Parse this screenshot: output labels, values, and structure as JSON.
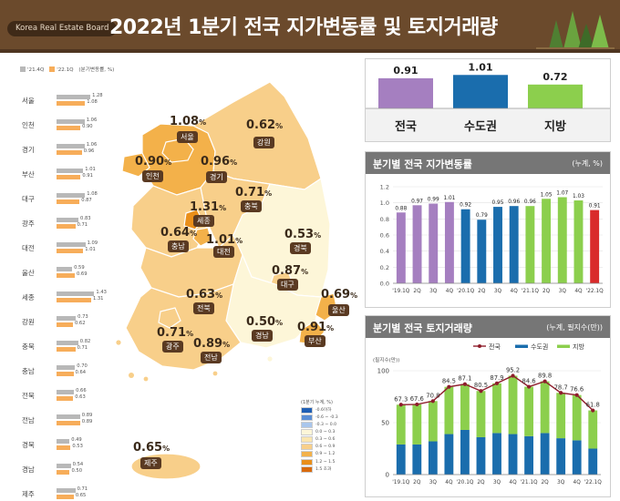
{
  "header": {
    "brand": "Korea Real Estate Board",
    "title": "2022년 1분기 전국 지가변동률 및 토지거래량"
  },
  "legend_top": {
    "prev": "'21.4Q",
    "curr": "'22.1Q",
    "unit": "(분기변동률, %)"
  },
  "regions": [
    {
      "name": "서울",
      "prev": "1.28",
      "curr": "1.08"
    },
    {
      "name": "인천",
      "prev": "1.06",
      "curr": "0.90"
    },
    {
      "name": "경기",
      "prev": "1.06",
      "curr": "0.96"
    },
    {
      "name": "부산",
      "prev": "1.01",
      "curr": "0.91"
    },
    {
      "name": "대구",
      "prev": "1.08",
      "curr": "0.87"
    },
    {
      "name": "광주",
      "prev": "0.83",
      "curr": "0.71"
    },
    {
      "name": "대전",
      "prev": "1.09",
      "curr": "1.01"
    },
    {
      "name": "울산",
      "prev": "0.59",
      "curr": "0.69"
    },
    {
      "name": "세종",
      "prev": "1.43",
      "curr": "1.31"
    },
    {
      "name": "강원",
      "prev": "0.73",
      "curr": "0.62"
    },
    {
      "name": "충북",
      "prev": "0.82",
      "curr": "0.71"
    },
    {
      "name": "충남",
      "prev": "0.70",
      "curr": "0.64"
    },
    {
      "name": "전북",
      "prev": "0.66",
      "curr": "0.63"
    },
    {
      "name": "전남",
      "prev": "0.89",
      "curr": "0.89"
    },
    {
      "name": "경북",
      "prev": "0.49",
      "curr": "0.53"
    },
    {
      "name": "경남",
      "prev": "0.54",
      "curr": "0.50"
    },
    {
      "name": "제주",
      "prev": "0.71",
      "curr": "0.65"
    }
  ],
  "map_labels": [
    {
      "pct": "1.08",
      "unit": "%",
      "name": "서울"
    },
    {
      "pct": "0.62",
      "unit": "%",
      "name": "강원"
    },
    {
      "pct": "0.90",
      "unit": "%",
      "name": "인천"
    },
    {
      "pct": "0.96",
      "unit": "%",
      "name": "경기"
    },
    {
      "pct": "0.71",
      "unit": "%",
      "name": "충북"
    },
    {
      "pct": "1.31",
      "unit": "%",
      "name": "세종"
    },
    {
      "pct": "0.64",
      "unit": "%",
      "name": "충남"
    },
    {
      "pct": "1.01",
      "unit": "%",
      "name": "대전"
    },
    {
      "pct": "0.53",
      "unit": "%",
      "name": "경북"
    },
    {
      "pct": "0.87",
      "unit": "%",
      "name": "대구"
    },
    {
      "pct": "0.63",
      "unit": "%",
      "name": "전북"
    },
    {
      "pct": "0.69",
      "unit": "%",
      "name": "울산"
    },
    {
      "pct": "0.50",
      "unit": "%",
      "name": "경남"
    },
    {
      "pct": "0.91",
      "unit": "%",
      "name": "부산"
    },
    {
      "pct": "0.71",
      "unit": "%",
      "name": "광주"
    },
    {
      "pct": "0.89",
      "unit": "%",
      "name": "전남"
    },
    {
      "pct": "0.65",
      "unit": "%",
      "name": "제주"
    }
  ],
  "scale_legend": {
    "title": "(1분기 누계, %)",
    "items": [
      {
        "label": "-0.6이하",
        "color": "#1f5fb5"
      },
      {
        "label": "-0.6 ~ -0.3",
        "color": "#5b8fd6"
      },
      {
        "label": "-0.3 ~ 0.0",
        "color": "#a9c6ec"
      },
      {
        "label": "0.0 ~ 0.3",
        "color": "#fdf6d8"
      },
      {
        "label": "0.3 ~ 0.6",
        "color": "#fbe6b0"
      },
      {
        "label": "0.6 ~ 0.9",
        "color": "#f8cf8a"
      },
      {
        "label": "0.9 ~ 1.2",
        "color": "#f3b14a"
      },
      {
        "label": "1.2 ~ 1.5",
        "color": "#ea8f1a"
      },
      {
        "label": "1.5 초과",
        "color": "#d86a0d"
      }
    ]
  },
  "colors": {
    "nation": "#a57fc0",
    "capital": "#1a6dad",
    "local": "#8ccf4d",
    "highlight": "#d92b2b",
    "line": "#8e1d2b"
  },
  "chart_data": [
    {
      "type": "bar",
      "title": "",
      "categories": [
        "전국",
        "수도권",
        "지방"
      ],
      "values": [
        0.91,
        1.01,
        0.72
      ],
      "value_labels": [
        "0.91",
        "1.01",
        "0.72"
      ],
      "ylim": [
        0,
        1.1
      ]
    },
    {
      "type": "bar",
      "title": "분기별 전국 지가변동률",
      "unit": "(누계, %)",
      "categories": [
        "'19.1Q",
        "2Q",
        "3Q",
        "4Q",
        "'20.1Q",
        "2Q",
        "3Q",
        "4Q",
        "'21.1Q",
        "2Q",
        "3Q",
        "4Q",
        "'22.1Q"
      ],
      "values": [
        0.88,
        0.97,
        0.99,
        1.01,
        0.92,
        0.79,
        0.95,
        0.96,
        0.96,
        1.05,
        1.07,
        1.03,
        0.91
      ],
      "value_labels": [
        "0.88",
        "0.97",
        "0.99",
        "1.01",
        "0.92",
        "0.79",
        "0.95",
        "0.96",
        "0.96",
        "1.05",
        "1.07",
        "1.03",
        "0.91"
      ],
      "ylim": [
        0,
        1.2
      ],
      "yticks": [
        "0.0",
        "0.2",
        "0.4",
        "0.6",
        "0.8",
        "1.0",
        "1.2"
      ]
    },
    {
      "type": "bar",
      "title": "분기별 전국 토지거래량",
      "unit": "(누계, 필지수(만))",
      "ylabel": "(필지수(만))",
      "categories": [
        "'19.1Q",
        "2Q",
        "3Q",
        "4Q",
        "'20.1Q",
        "2Q",
        "3Q",
        "4Q",
        "'21.1Q",
        "2Q",
        "3Q",
        "4Q",
        "'22.1Q"
      ],
      "series": [
        {
          "name": "전국",
          "kind": "line",
          "values": [
            67.3,
            67.6,
            70.8,
            84.5,
            87.1,
            80.5,
            87.9,
            95.2,
            84.6,
            89.8,
            78.7,
            76.6,
            61.8
          ]
        },
        {
          "name": "수도권",
          "kind": "stacked-bar",
          "values": [
            29,
            29,
            32,
            39,
            43,
            36,
            40,
            39,
            37,
            40,
            35,
            33,
            25
          ]
        },
        {
          "name": "지방",
          "kind": "stacked-bar",
          "values": [
            38.3,
            38.6,
            38.8,
            45.5,
            44.1,
            44.5,
            47.9,
            56.2,
            47.6,
            49.8,
            43.7,
            43.6,
            36.8
          ]
        }
      ],
      "value_labels": [
        "67.3",
        "67.6",
        "70.8",
        "84.5",
        "87.1",
        "80.5",
        "87.9",
        "95.2",
        "84.6",
        "89.8",
        "78.7",
        "76.6",
        "61.8"
      ],
      "ylim": [
        0,
        100
      ],
      "yticks": [
        "0",
        "50",
        "100"
      ]
    }
  ]
}
